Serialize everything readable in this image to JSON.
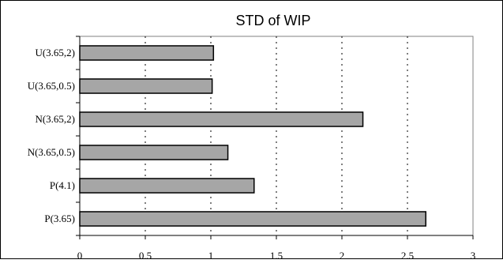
{
  "chart_data": {
    "type": "bar",
    "orientation": "horizontal",
    "title": "STD of WIP",
    "xlabel": "",
    "ylabel": "",
    "categories": [
      "P(3.65)",
      "P(4.1)",
      "N(3.65,0.5)",
      "N(3.65,2)",
      "U(3.65,0.5)",
      "U(3.65,2)"
    ],
    "values": [
      2.64,
      1.33,
      1.13,
      2.16,
      1.01,
      1.02
    ],
    "xlim": [
      0,
      3
    ],
    "x_ticks": [
      "0",
      "0.5",
      "1",
      "1.5",
      "2",
      "2.5",
      "3"
    ],
    "grid": "vertical dashed",
    "legend": "none",
    "colors": {
      "bar_fill": "#a6a6a6",
      "bar_stroke": "#000000",
      "plot_border": "#808080",
      "grid": "#000000"
    }
  }
}
